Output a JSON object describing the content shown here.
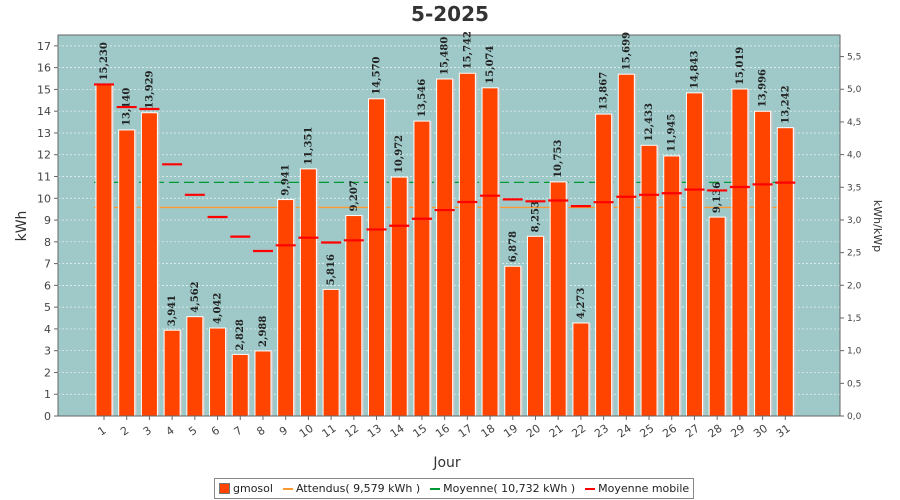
{
  "chart_data": {
    "type": "bar",
    "title": "5-2025",
    "xlabel": "Jour",
    "ylabel": "kWh",
    "y2label": "kWh/kWp",
    "ylim": [
      0,
      17.5
    ],
    "y2lim": [
      0,
      5.83
    ],
    "categories": [
      "1",
      "2",
      "3",
      "4",
      "5",
      "6",
      "7",
      "8",
      "9",
      "10",
      "11",
      "12",
      "13",
      "14",
      "15",
      "16",
      "17",
      "18",
      "19",
      "20",
      "21",
      "22",
      "23",
      "24",
      "25",
      "26",
      "27",
      "28",
      "29",
      "30",
      "31"
    ],
    "yticks": [
      "0",
      "1",
      "2",
      "3",
      "4",
      "5",
      "6",
      "7",
      "8",
      "9",
      "10",
      "11",
      "12",
      "13",
      "14",
      "15",
      "16",
      "17"
    ],
    "y2ticks": [
      "0,0",
      "0,5",
      "1,0",
      "1,5",
      "2,0",
      "2,5",
      "3,0",
      "3,5",
      "4,0",
      "4,5",
      "5,0",
      "5,5"
    ],
    "series": [
      {
        "name": "gmosol",
        "values": [
          15.23,
          13.14,
          13.929,
          3.941,
          4.562,
          4.042,
          2.828,
          2.988,
          9.941,
          11.351,
          5.816,
          9.207,
          14.57,
          10.972,
          13.546,
          15.48,
          15.742,
          15.074,
          6.878,
          8.253,
          10.753,
          4.273,
          13.867,
          15.699,
          12.433,
          11.945,
          14.843,
          9.136,
          15.019,
          13.996,
          13.242
        ],
        "labels": [
          "15,230",
          "13,140",
          "13,929",
          "3,941",
          "4,562",
          "4,042",
          "2,828",
          "2,988",
          "9,941",
          "11,351",
          "5,816",
          "9,207",
          "14,570",
          "10,972",
          "13,546",
          "15,480",
          "15,742",
          "15,074",
          "6,878",
          "8,253",
          "10,753",
          "4,273",
          "13,867",
          "15,699",
          "12,433",
          "11,945",
          "14,843",
          "9,136",
          "15,019",
          "13,996",
          "13,242"
        ],
        "color": "#ff4400"
      },
      {
        "name": "Moyenne mobile",
        "values": [
          15.23,
          14.19,
          14.1,
          11.56,
          10.16,
          9.14,
          8.24,
          7.58,
          7.84,
          8.19,
          7.97,
          8.07,
          8.57,
          8.74,
          9.06,
          9.46,
          9.83,
          10.12,
          9.95,
          9.86,
          9.9,
          9.64,
          9.82,
          10.07,
          10.16,
          10.23,
          10.4,
          10.36,
          10.52,
          10.64,
          10.72
        ],
        "color": "#ff0000"
      }
    ],
    "reference_lines": [
      {
        "name": "Attendus( 9,579 kWh )",
        "value": 9.579,
        "color": "#ff9933"
      },
      {
        "name": "Moyenne( 10,732 kWh )",
        "value": 10.732,
        "color": "#009933"
      }
    ],
    "legend": [
      "gmosol",
      "Attendus( 9,579 kWh )",
      "Moyenne( 10,732 kWh )",
      "Moyenne mobile"
    ],
    "legend_position": "bottom",
    "plot_bg": "#9ec9c8",
    "grid": true
  }
}
